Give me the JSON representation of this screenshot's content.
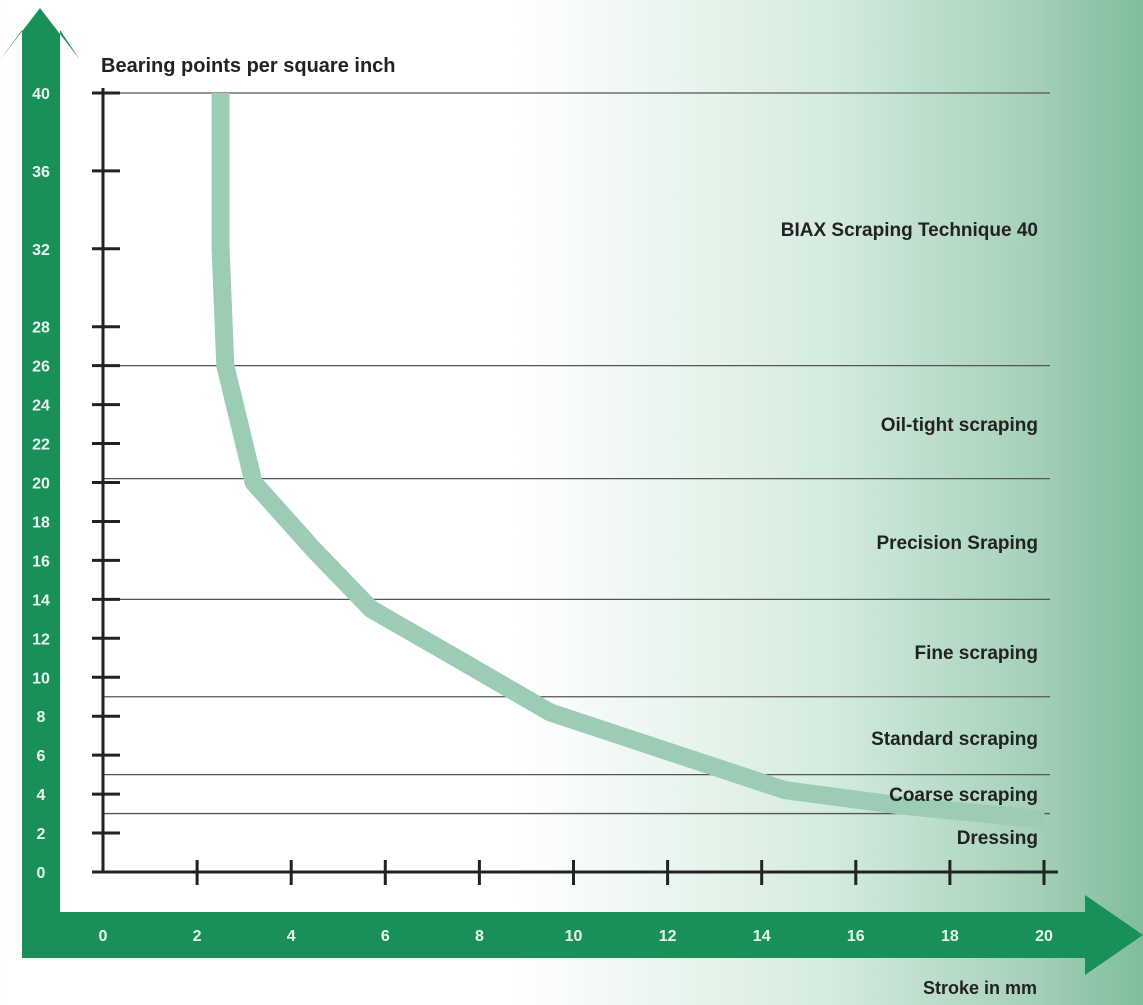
{
  "chart_data": {
    "type": "line",
    "ylabel": "Bearing points per square inch",
    "xlabel": "Stroke in mm",
    "xlim": [
      0,
      20
    ],
    "ylim": [
      0,
      40
    ],
    "x_ticks": [
      0,
      2,
      4,
      6,
      8,
      10,
      12,
      14,
      16,
      18,
      20
    ],
    "y_ticks": [
      0,
      2,
      4,
      6,
      8,
      10,
      12,
      14,
      16,
      18,
      20,
      22,
      24,
      26,
      28,
      32,
      36,
      40
    ],
    "grid": "horizontal zone boundaries only",
    "zone_boundaries": [
      3,
      5,
      9,
      14,
      20.2,
      26,
      40
    ],
    "zones": [
      {
        "label": "Dressing",
        "from": 0,
        "to": 3
      },
      {
        "label": "Coarse scraping",
        "from": 3,
        "to": 5
      },
      {
        "label": "Standard scraping",
        "from": 5,
        "to": 9
      },
      {
        "label": "Fine scraping",
        "from": 9,
        "to": 14
      },
      {
        "label": "Precision Sraping",
        "from": 14,
        "to": 20.2
      },
      {
        "label": "Oil-tight scraping",
        "from": 20.2,
        "to": 26
      },
      {
        "label": "BIAX Scraping Technique 40",
        "from": 26,
        "to": 40
      }
    ],
    "series": [
      {
        "x": [
          2.5,
          2.5,
          2.6,
          3.2,
          4.5,
          5.7,
          7.5,
          9.5,
          12,
          14.5,
          17,
          20
        ],
        "y": [
          40,
          32,
          26,
          20,
          16.5,
          13.5,
          11,
          8.2,
          6.2,
          4.2,
          3.4,
          2.7
        ]
      }
    ],
    "colors": {
      "curve": "#9ccdb4",
      "arrow": "#199058",
      "axis": "#222222",
      "zone_line": "#555555",
      "tick_text": "#e9f4ee"
    }
  }
}
